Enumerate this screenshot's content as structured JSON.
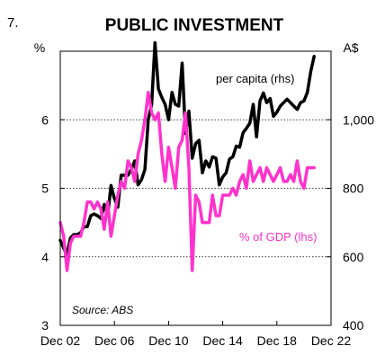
{
  "chart_data": {
    "type": "line",
    "number": "7.",
    "title": "PUBLIC INVESTMENT",
    "left_unit": "%",
    "right_unit": "A$",
    "source": "Source: ABS",
    "ylim_left": [
      3,
      7.0
    ],
    "ylim_right": [
      400,
      1200
    ],
    "left_ticks": [
      3,
      4,
      5,
      6
    ],
    "right_ticks": [
      400,
      600,
      800,
      1000
    ],
    "right_tick_labels": [
      "400",
      "600",
      "800",
      "1,000"
    ],
    "gridlines_left": [
      4,
      5,
      6
    ],
    "grid": true,
    "x_ticks": [
      "Dec 02",
      "Dec 06",
      "Dec 10",
      "Dec 14",
      "Dec 18",
      "Dec 22"
    ],
    "x_tick_years": [
      2002.92,
      2006.92,
      2010.92,
      2014.92,
      2018.92,
      2022.92
    ],
    "xlim": [
      2002.92,
      2022.92
    ],
    "series": [
      {
        "name": "per capita (rhs)",
        "axis": "right",
        "color": "#000000",
        "x": [
          2002.92,
          2003.17,
          2003.42,
          2003.67,
          2003.92,
          2004.17,
          2004.42,
          2004.67,
          2004.92,
          2005.17,
          2005.42,
          2005.67,
          2005.92,
          2006.17,
          2006.42,
          2006.67,
          2006.92,
          2007.17,
          2007.42,
          2007.67,
          2007.92,
          2008.17,
          2008.42,
          2008.67,
          2008.92,
          2009.17,
          2009.42,
          2009.67,
          2009.92,
          2010.17,
          2010.42,
          2010.67,
          2010.92,
          2011.17,
          2011.42,
          2011.67,
          2011.92,
          2012.17,
          2012.42,
          2012.67,
          2012.92,
          2013.17,
          2013.42,
          2013.67,
          2013.92,
          2014.17,
          2014.42,
          2014.67,
          2014.92,
          2015.17,
          2015.42,
          2015.67,
          2015.92,
          2016.17,
          2016.42,
          2016.67,
          2016.92,
          2017.17,
          2017.42,
          2017.67,
          2017.92,
          2018.17,
          2018.42,
          2018.67,
          2018.92,
          2019.17,
          2019.42,
          2019.67,
          2019.92,
          2020.17,
          2020.42,
          2020.67,
          2020.92,
          2021.17,
          2021.42,
          2021.67
        ],
        "values": [
          648,
          625,
          608,
          655,
          665,
          665,
          670,
          688,
          688,
          720,
          725,
          720,
          712,
          753,
          720,
          808,
          770,
          745,
          838,
          838,
          838,
          855,
          880,
          810,
          825,
          855,
          1000,
          1045,
          1225,
          1090,
          1065,
          1045,
          1000,
          1080,
          1045,
          1040,
          1165,
          960,
          1025,
          888,
          930,
          940,
          845,
          880,
          862,
          892,
          888,
          810,
          833,
          845,
          885,
          892,
          923,
          920,
          962,
          975,
          990,
          1045,
          950,
          1055,
          1078,
          1050,
          1062,
          1010,
          1022,
          1040,
          1050,
          1060,
          1050,
          1040,
          1030,
          1050,
          1055,
          1080,
          1140,
          1185
        ]
      },
      {
        "name": "% of GDP (lhs)",
        "axis": "left",
        "color": "#ff33cc",
        "x": [
          2002.92,
          2003.17,
          2003.42,
          2003.67,
          2003.92,
          2004.17,
          2004.42,
          2004.67,
          2004.92,
          2005.17,
          2005.42,
          2005.67,
          2005.92,
          2006.17,
          2006.42,
          2006.67,
          2006.92,
          2007.17,
          2007.42,
          2007.67,
          2007.92,
          2008.17,
          2008.42,
          2008.67,
          2008.92,
          2009.17,
          2009.42,
          2009.67,
          2009.92,
          2010.17,
          2010.42,
          2010.67,
          2010.92,
          2011.17,
          2011.42,
          2011.67,
          2011.92,
          2012.17,
          2012.42,
          2012.67,
          2012.92,
          2013.17,
          2013.42,
          2013.67,
          2013.92,
          2014.17,
          2014.42,
          2014.67,
          2014.92,
          2015.17,
          2015.42,
          2015.67,
          2015.92,
          2016.17,
          2016.42,
          2016.67,
          2016.92,
          2017.17,
          2017.42,
          2017.67,
          2017.92,
          2018.17,
          2018.42,
          2018.67,
          2018.92,
          2019.17,
          2019.42,
          2019.67,
          2019.92,
          2020.17,
          2020.42,
          2020.67,
          2020.92,
          2021.17,
          2021.42,
          2021.67
        ],
        "values": [
          4.5,
          4.3,
          3.8,
          4.2,
          4.3,
          4.3,
          4.3,
          4.5,
          4.8,
          4.8,
          4.7,
          4.8,
          4.7,
          4.4,
          4.8,
          4.3,
          4.6,
          4.9,
          5.1,
          5.0,
          5.4,
          5.3,
          5.1,
          5.5,
          5.7,
          6.0,
          6.4,
          6.1,
          6.0,
          6.1,
          5.5,
          5.1,
          5.6,
          5.3,
          5.0,
          5.6,
          5.7,
          6.1,
          5.3,
          3.8,
          4.9,
          4.8,
          4.5,
          4.5,
          4.5,
          4.9,
          4.6,
          4.6,
          4.9,
          4.9,
          4.9,
          5.0,
          4.9,
          5.1,
          5.2,
          5.0,
          5.4,
          5.1,
          5.2,
          5.3,
          5.1,
          5.3,
          5.2,
          5.1,
          5.2,
          5.3,
          5.1,
          5.1,
          5.2,
          5.1,
          5.4,
          5.1,
          5.0,
          5.3,
          5.3,
          5.3
        ]
      }
    ],
    "series_labels": {
      "per_capita": "per capita (rhs)",
      "gdp_share": "% of GDP (lhs)"
    }
  }
}
